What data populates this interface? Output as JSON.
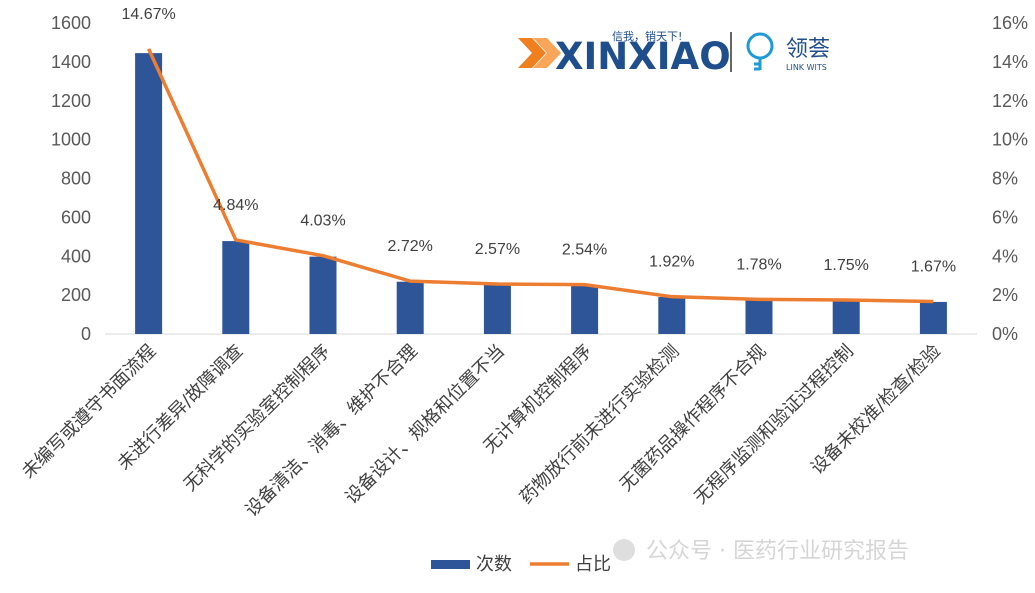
{
  "logos": {
    "brand_main": "XINXIAO",
    "brand_main_tagline": "信我，销天下!",
    "brand_second": "领荟",
    "brand_second_sub": "LINK WITS"
  },
  "watermark": {
    "text": "公众号 · 医药行业研究报告"
  },
  "colors": {
    "bar": "#2E5597",
    "line": "#ED7D31",
    "logo_orange": "#F07F1F",
    "logo_blue": "#1F4E8C",
    "logo_cyan": "#1E9BD7"
  },
  "chart_data": {
    "type": "bar+line",
    "categories": [
      "未编写或遵守书面流程",
      "未进行差异/故障调查",
      "无科学的实验室控制程序",
      "设备清洁、消毒、维护不合理",
      "设备设计、规格和位置不当",
      "无计算机控制程序",
      "药物放行前未进行实验检测",
      "无菌药品操作程序不合规",
      "无程序监测和验证过程控制",
      "设备未校准/检查/检验"
    ],
    "series": [
      {
        "name": "次数",
        "type": "bar",
        "axis": "left",
        "values": [
          1445,
          478,
          398,
          269,
          254,
          251,
          190,
          176,
          173,
          165
        ]
      },
      {
        "name": "占比",
        "type": "line",
        "axis": "right",
        "values": [
          14.67,
          4.84,
          4.03,
          2.72,
          2.57,
          2.54,
          1.92,
          1.78,
          1.75,
          1.67
        ],
        "labels": [
          "14.67%",
          "4.84%",
          "4.03%",
          "2.72%",
          "2.57%",
          "2.54%",
          "1.92%",
          "1.78%",
          "1.75%",
          "1.67%"
        ]
      }
    ],
    "y_left": {
      "min": 0,
      "max": 1600,
      "ticks": [
        "0",
        "200",
        "400",
        "600",
        "800",
        "1000",
        "1200",
        "1400",
        "1600"
      ]
    },
    "y_right": {
      "min": 0,
      "max": 16,
      "ticks": [
        "0%",
        "2%",
        "4%",
        "6%",
        "8%",
        "10%",
        "12%",
        "14%",
        "16%"
      ]
    },
    "legend": {
      "position": "bottom",
      "entries": [
        "次数",
        "占比"
      ]
    },
    "grid": false
  }
}
